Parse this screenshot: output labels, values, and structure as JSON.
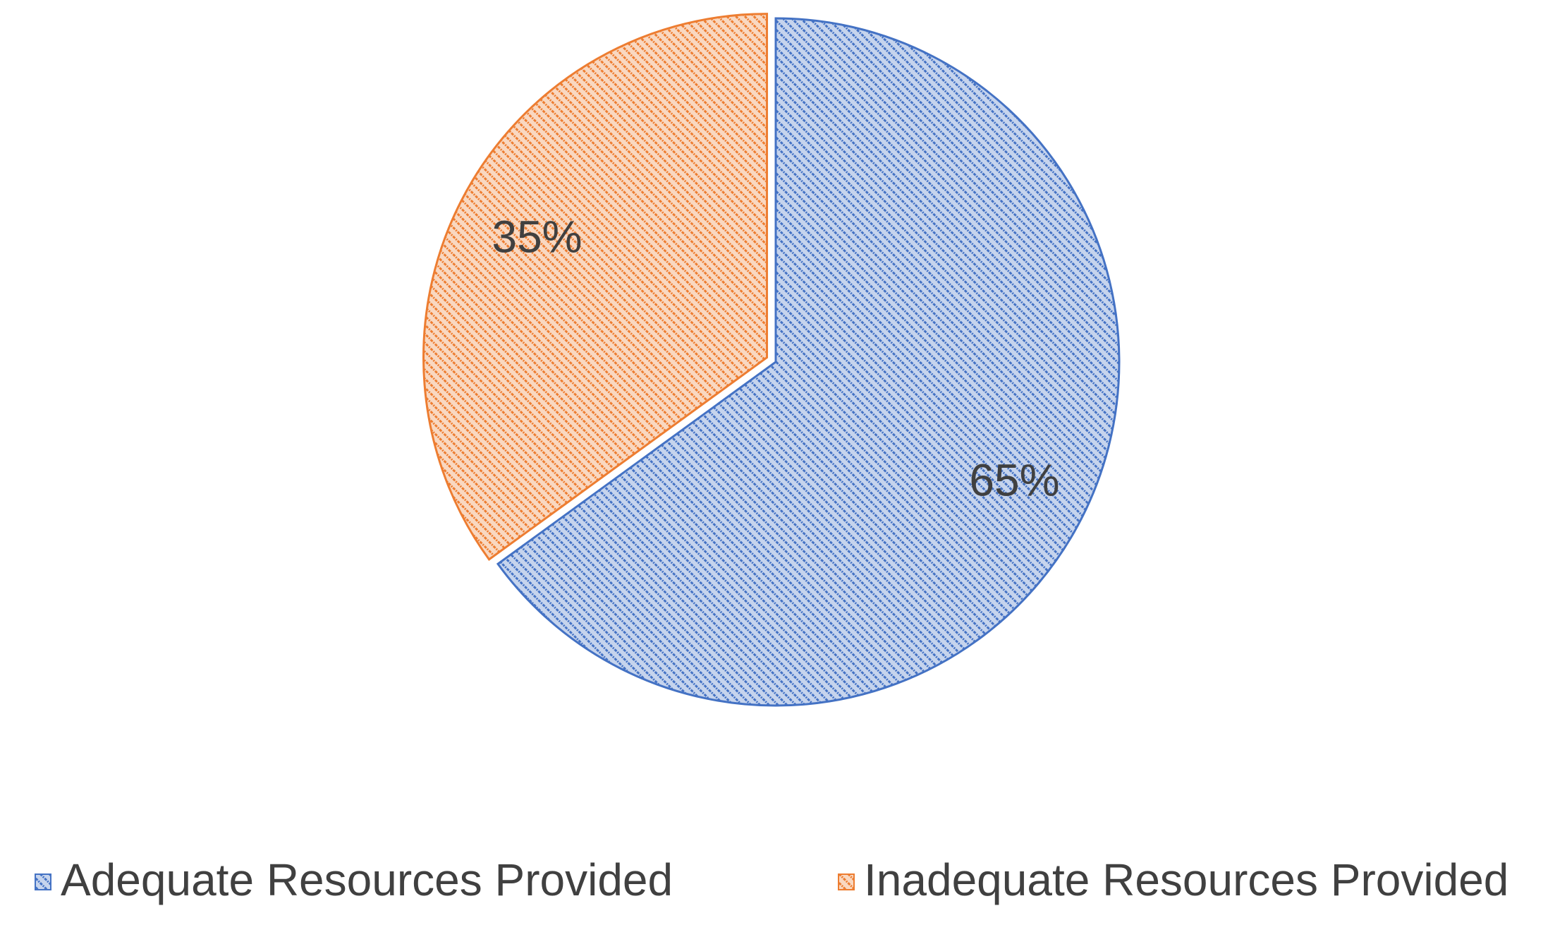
{
  "chart_data": {
    "type": "pie",
    "categories": [
      "Adequate Resources Provided",
      "Inadequate Resources Provided"
    ],
    "values": [
      65,
      35
    ],
    "value_labels": [
      "65%",
      "35%"
    ],
    "colors": [
      "#4472c4",
      "#ed7d31"
    ],
    "legend": "bottom"
  }
}
